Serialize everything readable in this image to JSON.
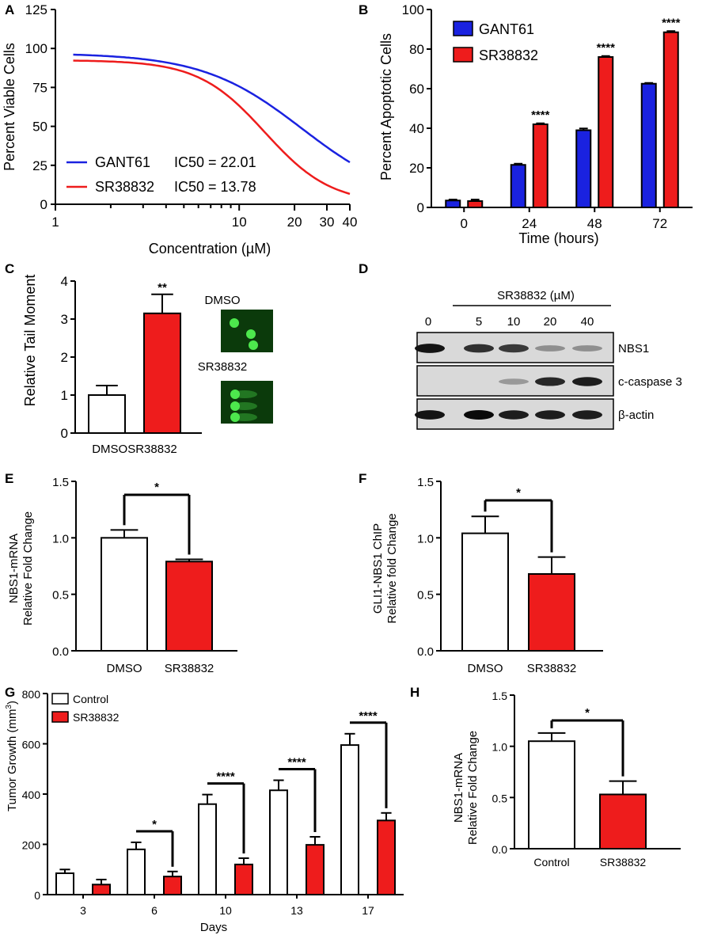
{
  "colors": {
    "blue": "#1a22e0",
    "red": "#ee1c1c",
    "white": "#ffffff",
    "black": "#000000",
    "blot_bg": "#d9d9d9",
    "comet_bg": "#0b3a0b",
    "comet": "#4de84d"
  },
  "chart_data": [
    {
      "panel": "A",
      "type": "line",
      "xscale": "log",
      "xlabel": "Concentration (µM)",
      "ylabel": "Percent Viable Cells",
      "xlim": [
        1,
        40
      ],
      "ylim": [
        0,
        125
      ],
      "xticks": [
        1,
        10,
        20,
        30,
        40
      ],
      "yticks": [
        0,
        25,
        50,
        75,
        100,
        125
      ],
      "series": [
        {
          "name": "GANT61",
          "ic50": 22.01,
          "top": 97,
          "bottom": 0,
          "hill": 1.6,
          "color": "#1a22e0",
          "legend": "GANT61",
          "ic50_text": "IC50 = 22.01"
        },
        {
          "name": "SR38832",
          "ic50": 13.78,
          "top": 92.5,
          "bottom": 0,
          "hill": 2.4,
          "color": "#ee1c1c",
          "legend": "SR38832",
          "ic50_text": "IC50 = 13.78"
        }
      ]
    },
    {
      "panel": "B",
      "type": "bar",
      "xlabel": "Time (hours)",
      "ylabel": "Percent Apoptotic Cells",
      "categories": [
        "0",
        "24",
        "48",
        "72"
      ],
      "ylim": [
        0,
        100
      ],
      "yticks": [
        0,
        20,
        40,
        60,
        80,
        100
      ],
      "series": [
        {
          "name": "GANT61",
          "values": [
            3.5,
            21.5,
            39,
            62.5
          ],
          "errors": [
            0.5,
            0.6,
            0.9,
            0.4
          ],
          "color": "#1a22e0"
        },
        {
          "name": "SR38832",
          "values": [
            3.2,
            42,
            76,
            88.5
          ],
          "errors": [
            0.8,
            0.5,
            0.5,
            0.6
          ],
          "color": "#ee1c1c"
        }
      ],
      "annotations": [
        "",
        "****",
        "****",
        "****"
      ]
    },
    {
      "panel": "C",
      "type": "bar",
      "ylabel": "Relative Tail Moment",
      "categories": [
        "DMSO",
        "SR38832"
      ],
      "values": [
        1.0,
        3.15
      ],
      "errors": [
        0.25,
        0.5
      ],
      "colors": [
        "#ffffff",
        "#ee1c1c"
      ],
      "ylim": [
        0,
        4
      ],
      "yticks": [
        0,
        1,
        2,
        3,
        4
      ],
      "annotations": [
        "",
        "**"
      ],
      "images": [
        "DMSO",
        "SR38832"
      ]
    },
    {
      "panel": "D",
      "type": "blot",
      "treatment": "SR38832 (µM)",
      "lanes": [
        "0",
        "5",
        "10",
        "20",
        "40"
      ],
      "rows": [
        {
          "label": "NBS1",
          "intensities": [
            0.95,
            0.8,
            0.75,
            0.3,
            0.3
          ]
        },
        {
          "label": "c-caspase 3",
          "intensities": [
            0.0,
            0.0,
            0.25,
            0.85,
            0.9
          ]
        },
        {
          "label": "β-actin",
          "intensities": [
            0.95,
            1.0,
            0.9,
            0.9,
            0.9
          ]
        }
      ]
    },
    {
      "panel": "E",
      "type": "bar",
      "ylabel": [
        "NBS1-mRNA",
        "Relative Fold Change"
      ],
      "categories": [
        "DMSO",
        "SR38832"
      ],
      "values": [
        1.0,
        0.79
      ],
      "errors": [
        0.07,
        0.02
      ],
      "colors": [
        "#ffffff",
        "#ee1c1c"
      ],
      "ylim": [
        0,
        1.5
      ],
      "yticks": [
        "0.0",
        "0.5",
        "1.0",
        "1.5"
      ],
      "significance": "*"
    },
    {
      "panel": "F",
      "type": "bar",
      "ylabel": [
        "GLI1-NBS1 ChIP",
        "Relative fold  Change"
      ],
      "categories": [
        "DMSO",
        "SR38832"
      ],
      "values": [
        1.04,
        0.68
      ],
      "errors": [
        0.15,
        0.15
      ],
      "colors": [
        "#ffffff",
        "#ee1c1c"
      ],
      "ylim": [
        0,
        1.5
      ],
      "yticks": [
        "0.0",
        "0.5",
        "1.0",
        "1.5"
      ],
      "significance": "*"
    },
    {
      "panel": "G",
      "type": "bar",
      "xlabel": "Days",
      "ylabel": "Tumor Growth (mm",
      "ylabel_sup": "3",
      "ylabel_close": ")",
      "categories": [
        "3",
        "6",
        "10",
        "13",
        "17"
      ],
      "ylim": [
        0,
        800
      ],
      "yticks": [
        0,
        200,
        400,
        600,
        800
      ],
      "series": [
        {
          "name": "Control",
          "values": [
            85,
            180,
            360,
            415,
            595
          ],
          "errors": [
            15,
            28,
            38,
            40,
            45
          ],
          "color": "#ffffff"
        },
        {
          "name": "SR38832",
          "values": [
            40,
            72,
            120,
            198,
            295
          ],
          "errors": [
            20,
            20,
            25,
            32,
            30
          ],
          "color": "#ee1c1c"
        }
      ],
      "annotations": [
        "",
        "*",
        "****",
        "****",
        "****"
      ]
    },
    {
      "panel": "H",
      "type": "bar",
      "ylabel": [
        "NBS1-mRNA",
        "Relative Fold Change"
      ],
      "categories": [
        "Control",
        "SR38832"
      ],
      "values": [
        1.05,
        0.53
      ],
      "errors": [
        0.08,
        0.13
      ],
      "colors": [
        "#ffffff",
        "#ee1c1c"
      ],
      "ylim": [
        0,
        1.5
      ],
      "yticks": [
        "0.0",
        "0.5",
        "1.0",
        "1.5"
      ],
      "significance": "*"
    }
  ]
}
